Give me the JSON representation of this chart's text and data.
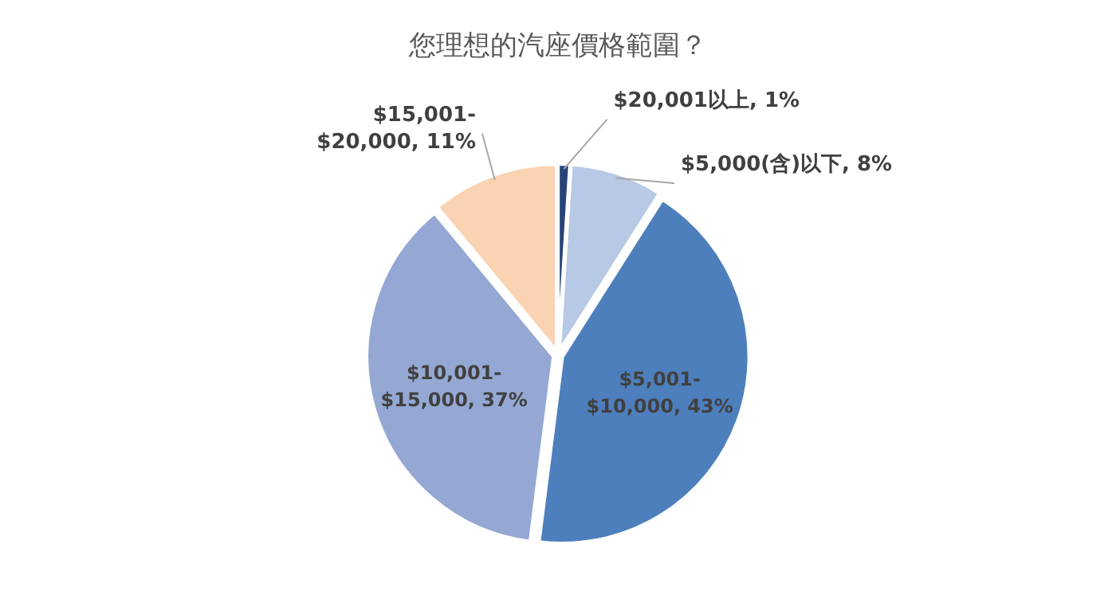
{
  "chart_data": {
    "type": "pie",
    "title": "您理想的汽座價格範圍？",
    "categories": [
      "$20,001以上",
      "$5,000(含)以下",
      "$5,001-$10,000",
      "$10,001-$15,000",
      "$15,001-$20,000"
    ],
    "values": [
      1,
      8,
      43,
      37,
      11
    ],
    "value_labels": [
      "1%",
      "8%",
      "43%",
      "37%",
      "11%"
    ],
    "colors": [
      "#264478",
      "#b7c9e5",
      "#4e7fbd",
      "#94a8d3",
      "#f9d3b2"
    ]
  }
}
